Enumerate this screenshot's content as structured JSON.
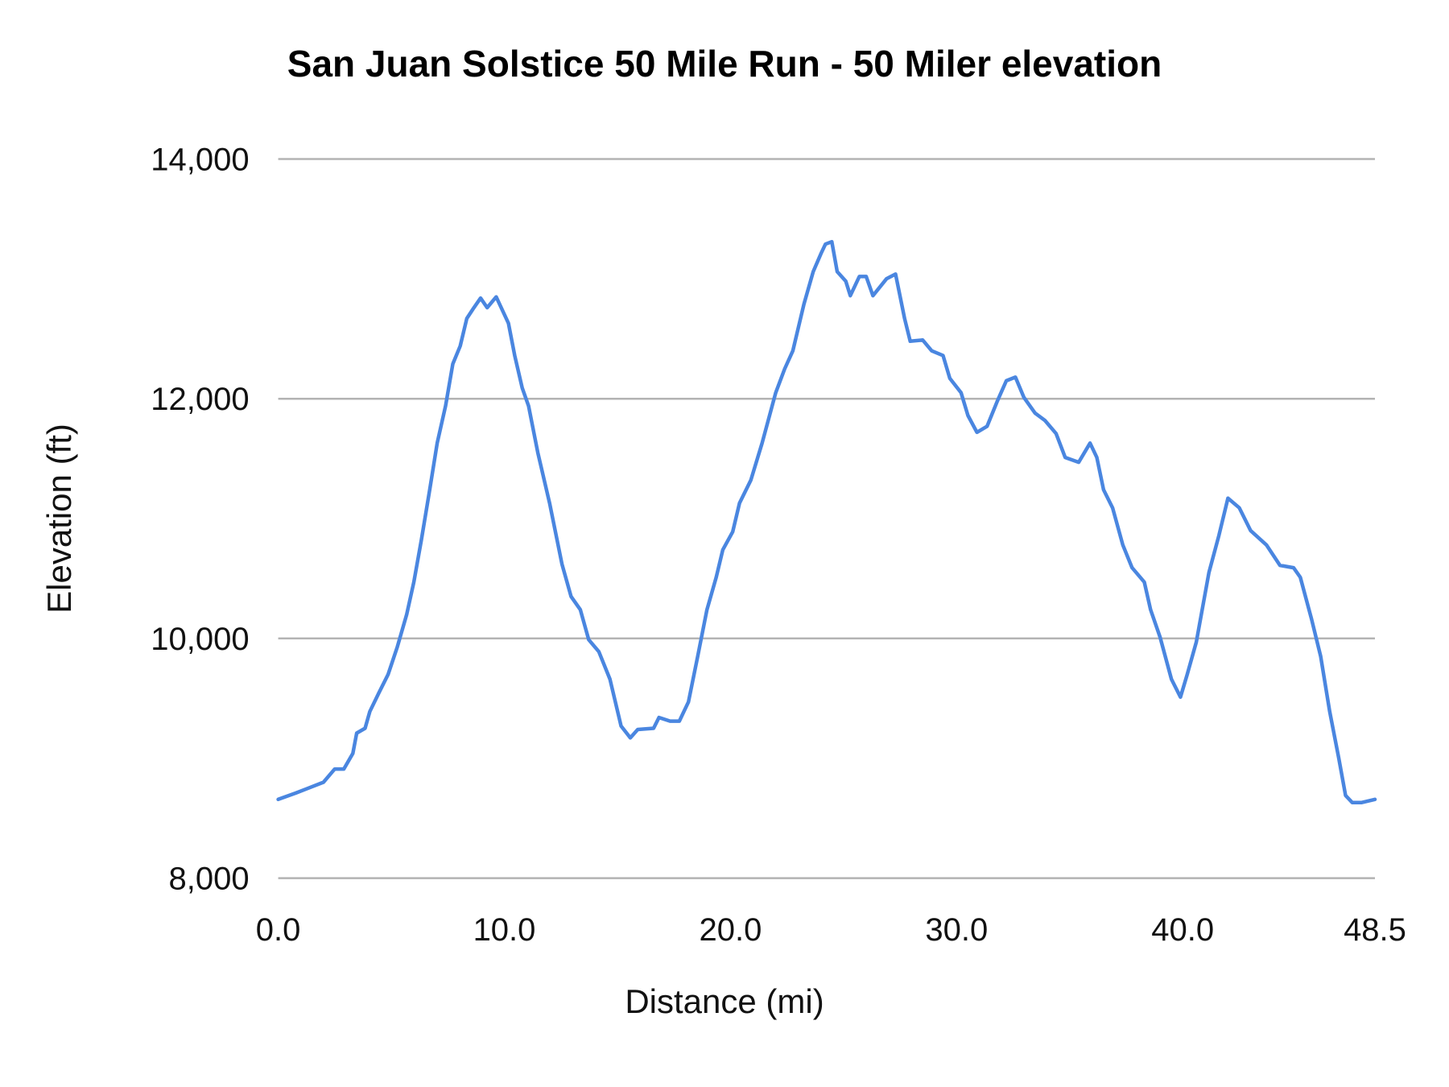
{
  "chart_data": {
    "type": "line",
    "title": "San Juan Solstice 50 Mile Run - 50 Miler elevation",
    "xlabel": "Distance (mi)",
    "ylabel": "Elevation (ft)",
    "xlim": [
      0,
      48.5
    ],
    "ylim": [
      8000,
      14000
    ],
    "xticks": [
      "0.0",
      "10.0",
      "20.0",
      "30.0",
      "40.0",
      "48.5"
    ],
    "xtick_values": [
      0,
      10,
      20,
      30,
      40,
      48.5
    ],
    "yticks": [
      "8,000",
      "10,000",
      "12,000",
      "14,000"
    ],
    "ytick_values": [
      8000,
      10000,
      12000,
      14000
    ],
    "grid": "horizontal",
    "legend": "none",
    "color": "#4a86e0",
    "series": [
      {
        "x": [
          0,
          0.78,
          2.0,
          2.5,
          2.9,
          3.3,
          3.47,
          3.84,
          4.05,
          4.45,
          4.86,
          5.27,
          5.68,
          6.0,
          6.33,
          6.7,
          7.03,
          7.4,
          7.72,
          8.05,
          8.34,
          8.62,
          8.95,
          9.24,
          9.64,
          10.18,
          10.46,
          10.79,
          11.07,
          11.48,
          12.0,
          12.55,
          12.95,
          13.36,
          13.73,
          14.18,
          14.67,
          15.16,
          15.57,
          15.9,
          16.6,
          16.84,
          17.33,
          17.74,
          18.14,
          18.55,
          18.96,
          19.37,
          19.66,
          20.1,
          20.4,
          20.9,
          21.4,
          22.0,
          22.4,
          22.76,
          23.25,
          23.66,
          24.0,
          24.2,
          24.48,
          24.72,
          25.1,
          25.3,
          25.7,
          26.0,
          26.3,
          26.9,
          27.3,
          27.7,
          27.95,
          28.5,
          28.9,
          29.4,
          29.7,
          30.2,
          30.5,
          30.9,
          31.35,
          31.8,
          32.2,
          32.6,
          32.98,
          33.47,
          33.9,
          34.4,
          34.8,
          35.4,
          35.9,
          36.2,
          36.5,
          36.9,
          37.35,
          37.76,
          38.3,
          38.58,
          39.0,
          39.5,
          39.9,
          40.2,
          40.6,
          41.16,
          41.6,
          42.0,
          42.5,
          43.0,
          43.7,
          44.3,
          44.9,
          45.2,
          45.7,
          46.1,
          46.5,
          46.9,
          47.2,
          47.5,
          47.9,
          48.5
        ],
        "y": [
          8657,
          8710,
          8800,
          8910,
          8910,
          9040,
          9210,
          9250,
          9390,
          9545,
          9700,
          9930,
          10200,
          10470,
          10820,
          11240,
          11630,
          11940,
          12290,
          12440,
          12670,
          12750,
          12840,
          12760,
          12850,
          12630,
          12360,
          12090,
          11940,
          11550,
          11130,
          10620,
          10350,
          10240,
          9990,
          9890,
          9660,
          9270,
          9170,
          9240,
          9250,
          9340,
          9310,
          9310,
          9470,
          9850,
          10240,
          10510,
          10740,
          10890,
          11130,
          11320,
          11630,
          12050,
          12250,
          12400,
          12790,
          13060,
          13210,
          13290,
          13310,
          13060,
          12980,
          12860,
          13020,
          13020,
          12860,
          13000,
          13040,
          12670,
          12480,
          12490,
          12400,
          12360,
          12170,
          12050,
          11860,
          11720,
          11770,
          11980,
          12150,
          12180,
          12010,
          11880,
          11820,
          11710,
          11510,
          11470,
          11630,
          11510,
          11240,
          11090,
          10780,
          10590,
          10470,
          10240,
          10010,
          9660,
          9510,
          9700,
          9970,
          10550,
          10860,
          11170,
          11090,
          10900,
          10780,
          10610,
          10590,
          10510,
          10160,
          9850,
          9390,
          9000,
          8690,
          8630,
          8630,
          8657
        ]
      }
    ]
  }
}
